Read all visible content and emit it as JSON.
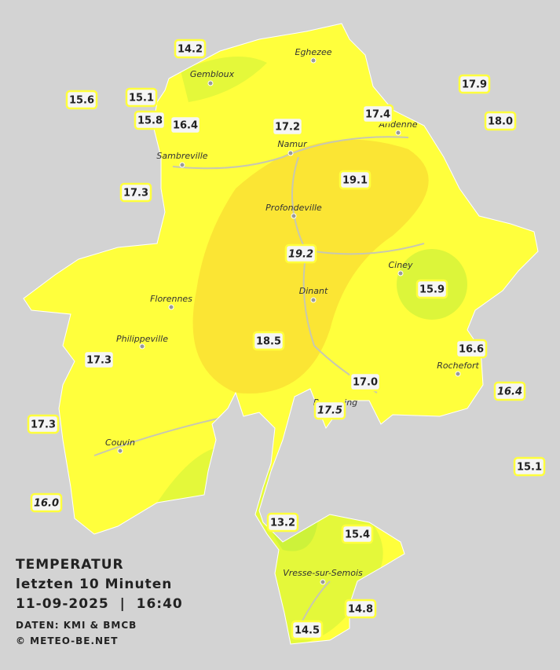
{
  "title": {
    "line1": "TEMPERATUR",
    "line2": "letzten 10 Minuten",
    "date_line": "11-09-2025  |  16:40",
    "source": "DATEN: KMI & BMCB",
    "credit": "© METEO-BE.NET"
  },
  "cities": [
    "Eghezee",
    "Gembloux",
    "Andenne",
    "Namur",
    "Sambreville",
    "Profondeville",
    "Ciney",
    "Dinant",
    "Florennes",
    "Philippeville",
    "Rochefort",
    "Beauraing",
    "Couvin",
    "Vresse-sur-Semois"
  ],
  "stations": [
    "14.2",
    "15.6",
    "15.1",
    "15.8",
    "16.4",
    "17.2",
    "17.4",
    "17.9",
    "18.0",
    "17.3",
    "19.1",
    "19.2",
    "15.9",
    "18.5",
    "16.6",
    "17.3",
    "17.0",
    "16.4",
    "17.5",
    "17.3",
    "15.1",
    "16.0",
    "13.2",
    "15.4",
    "14.8",
    "14.5"
  ]
}
